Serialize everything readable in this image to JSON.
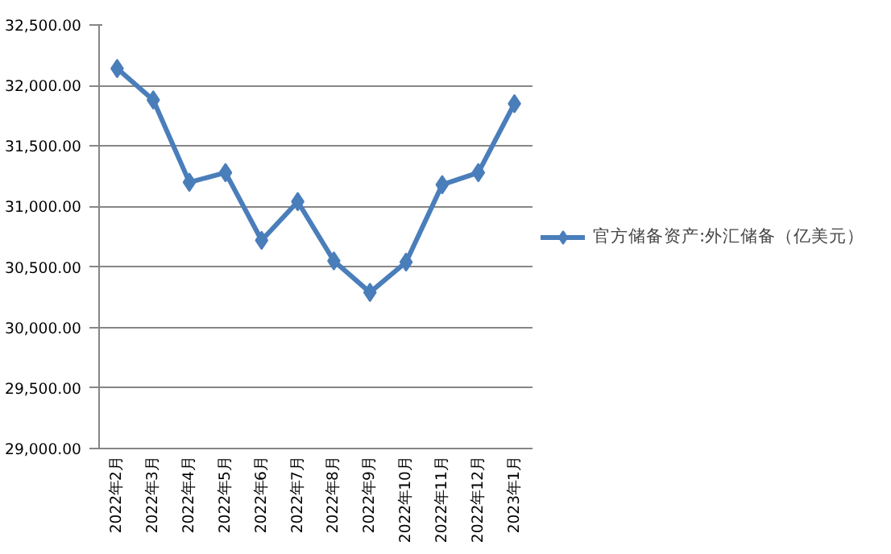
{
  "chart_data": {
    "type": "line",
    "categories": [
      "2022年2月",
      "2022年3月",
      "2022年4月",
      "2022年5月",
      "2022年6月",
      "2022年7月",
      "2022年8月",
      "2022年9月",
      "2022年10月",
      "2022年11月",
      "2022年12月",
      "2023年1月"
    ],
    "series": [
      {
        "name": "官方储备资产:外汇储备（亿美元）",
        "color": "#4a7ebb",
        "values": [
          32140,
          31880,
          31200,
          31280,
          30720,
          31040,
          30550,
          30290,
          30540,
          31180,
          31280,
          31850
        ]
      }
    ],
    "ylim": [
      29000,
      32500
    ],
    "yticks": [
      {
        "value": 29000,
        "label": "29,000.00"
      },
      {
        "value": 29500,
        "label": "29,500.00"
      },
      {
        "value": 30000,
        "label": "30,000.00"
      },
      {
        "value": 30500,
        "label": "30,500.00"
      },
      {
        "value": 31000,
        "label": "31,000.00"
      },
      {
        "value": 31500,
        "label": "31,500.00"
      },
      {
        "value": 32000,
        "label": "32,000.00"
      },
      {
        "value": 32500,
        "label": "32,500.00"
      }
    ],
    "grid": "y",
    "legend": "right",
    "marker": "diamond",
    "line_style": "solid"
  }
}
